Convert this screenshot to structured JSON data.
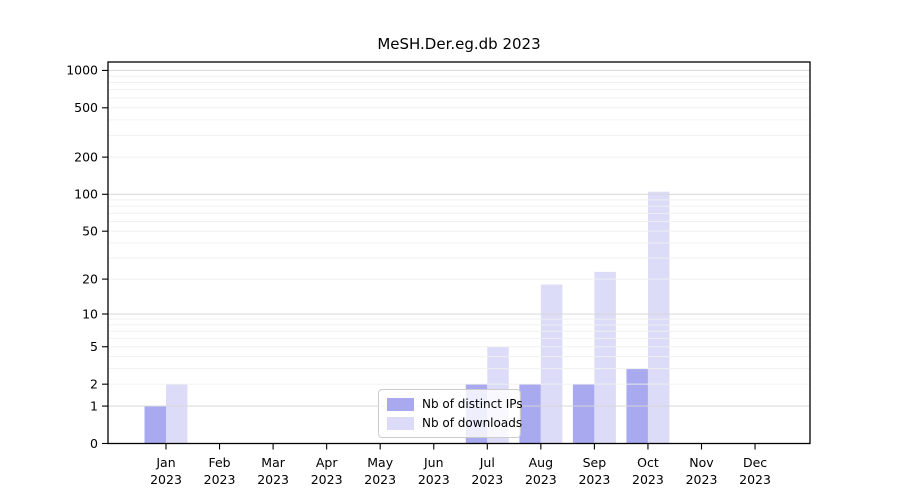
{
  "chart_data": {
    "type": "bar",
    "title": "MeSH.Der.eg.db 2023",
    "categories": [
      "Jan",
      "Feb",
      "Mar",
      "Apr",
      "May",
      "Jun",
      "Jul",
      "Aug",
      "Sep",
      "Oct",
      "Nov",
      "Dec"
    ],
    "year_label": "2023",
    "series": [
      {
        "name": "Nb of distinct IPs",
        "color": "#a9a9ef",
        "values": [
          1,
          0,
          0,
          0,
          0,
          0,
          2,
          2,
          2,
          3,
          0,
          0
        ]
      },
      {
        "name": "Nb of downloads",
        "color": "#dcdcf8",
        "values": [
          2,
          0,
          0,
          0,
          0,
          0,
          5,
          18,
          23,
          105,
          0,
          0
        ]
      }
    ],
    "y_axis": {
      "scale": "log1p",
      "ticks": [
        0,
        1,
        2,
        5,
        10,
        20,
        50,
        100,
        200,
        500,
        1000
      ],
      "ylim": [
        0,
        1180
      ]
    },
    "x_axis": {
      "tick_label_format": "month over year, two lines"
    },
    "legend": {
      "position": "bottom-center-inside"
    },
    "grid": {
      "horizontal": "major-and-minor-log",
      "major_color": "#d6d6d6",
      "minor_color": "#efefef"
    },
    "colors": {
      "axis": "#000000",
      "background": "#ffffff",
      "text": "#000000"
    }
  }
}
